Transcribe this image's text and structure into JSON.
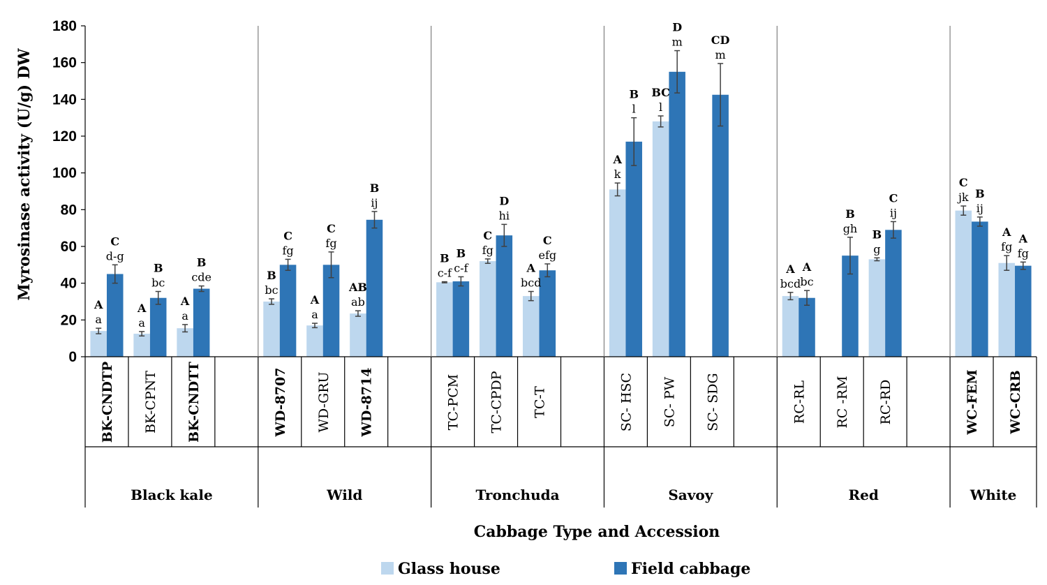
{
  "chart_data": {
    "type": "bar",
    "title": "",
    "xlabel": "Cabbage Type and Accession",
    "ylabel": "Myrosinase activity (U/g) DW",
    "ylim": [
      0,
      180
    ],
    "yticks": [
      0,
      20,
      40,
      60,
      80,
      100,
      120,
      140,
      160,
      180
    ],
    "legend_position": "bottom",
    "colors": {
      "Glass house": "#bdd7ee",
      "Field cabbage": "#2e75b6"
    },
    "series": [
      {
        "name": "Glass house"
      },
      {
        "name": "Field cabbage"
      }
    ],
    "groups": [
      {
        "name": "Black kale",
        "accessions": [
          {
            "name": "BK-CNDTP",
            "bold": true,
            "glass": {
              "value": 14,
              "err": 1.5,
              "lower": "a",
              "upper": "A"
            },
            "field": {
              "value": 45,
              "err": 5,
              "lower": "d-g",
              "upper": "C"
            }
          },
          {
            "name": "BK-CPNT",
            "bold": false,
            "glass": {
              "value": 12.5,
              "err": 1.2,
              "lower": "a",
              "upper": "A"
            },
            "field": {
              "value": 32,
              "err": 3.5,
              "lower": "bc",
              "upper": "B"
            }
          },
          {
            "name": "BK-CNDTT",
            "bold": true,
            "glass": {
              "value": 15.5,
              "err": 2,
              "lower": "a",
              "upper": "A"
            },
            "field": {
              "value": 37,
              "err": 1.5,
              "lower": "cde",
              "upper": "B"
            }
          },
          {
            "name": "",
            "empty": true
          }
        ]
      },
      {
        "name": "Wild",
        "accessions": [
          {
            "name": "WD-8707",
            "bold": true,
            "glass": {
              "value": 30,
              "err": 1.5,
              "lower": "bc",
              "upper": "B"
            },
            "field": {
              "value": 50,
              "err": 3,
              "lower": "fg",
              "upper": "C"
            }
          },
          {
            "name": "WD-GRU",
            "bold": false,
            "glass": {
              "value": 17,
              "err": 1.2,
              "lower": "a",
              "upper": "A"
            },
            "field": {
              "value": 50,
              "err": 7,
              "lower": "fg",
              "upper": "C"
            }
          },
          {
            "name": "WD-8714",
            "bold": true,
            "glass": {
              "value": 23.5,
              "err": 1.5,
              "lower": "ab",
              "upper": "AB"
            },
            "field": {
              "value": 74.5,
              "err": 4.5,
              "lower": "ij",
              "upper": "B"
            }
          },
          {
            "name": "",
            "empty": true
          }
        ]
      },
      {
        "name": "Tronchuda",
        "accessions": [
          {
            "name": "TC-PCM",
            "bold": false,
            "glass": {
              "value": 40.5,
              "err": 0.3,
              "lower": "c-f",
              "upper": "B"
            },
            "field": {
              "value": 41,
              "err": 2.5,
              "lower": "c-f",
              "upper": "B"
            }
          },
          {
            "name": "TC-CPDP",
            "bold": false,
            "glass": {
              "value": 52,
              "err": 1.2,
              "lower": "fg",
              "upper": "C"
            },
            "field": {
              "value": 66,
              "err": 6,
              "lower": "hi",
              "upper": "D"
            }
          },
          {
            "name": "TC-T",
            "bold": false,
            "glass": {
              "value": 33,
              "err": 2.5,
              "lower": "bcd",
              "upper": "A"
            },
            "field": {
              "value": 47,
              "err": 3.5,
              "lower": "efg",
              "upper": "C"
            }
          },
          {
            "name": "",
            "empty": true
          }
        ]
      },
      {
        "name": "Savoy",
        "accessions": [
          {
            "name": "SC- HSC",
            "bold": false,
            "glass": {
              "value": 91,
              "err": 3.5,
              "lower": "k",
              "upper": "A"
            },
            "field": {
              "value": 117,
              "err": 13,
              "lower": "l",
              "upper": "B"
            }
          },
          {
            "name": "SC- PW",
            "bold": false,
            "glass": {
              "value": 128,
              "err": 3,
              "lower": "l",
              "upper": "BC"
            },
            "field": {
              "value": 155,
              "err": 11.5,
              "lower": "m",
              "upper": "D"
            }
          },
          {
            "name": "SC- SDG",
            "bold": false,
            "glass": null,
            "field": {
              "value": 142.5,
              "err": 17,
              "lower": "m",
              "upper": "CD"
            }
          },
          {
            "name": "",
            "empty": true
          }
        ]
      },
      {
        "name": "Red",
        "accessions": [
          {
            "name": "RC-RL",
            "bold": false,
            "glass": {
              "value": 33,
              "err": 2,
              "lower": "bcd",
              "upper": "A"
            },
            "field": {
              "value": 32,
              "err": 4,
              "lower": "bc",
              "upper": "A"
            }
          },
          {
            "name": "RC -RM",
            "bold": false,
            "glass": null,
            "field": {
              "value": 55,
              "err": 10,
              "lower": "gh",
              "upper": "B"
            }
          },
          {
            "name": "RC-RD",
            "bold": false,
            "glass": {
              "value": 53,
              "err": 0.8,
              "lower": "g",
              "upper": "B"
            },
            "field": {
              "value": 69,
              "err": 4.5,
              "lower": "ij",
              "upper": "C"
            }
          },
          {
            "name": "",
            "empty": true
          }
        ]
      },
      {
        "name": "White",
        "accessions": [
          {
            "name": "WC-FEM",
            "bold": true,
            "glass": {
              "value": 79.5,
              "err": 2.5,
              "lower": "jk",
              "upper": "C"
            },
            "field": {
              "value": 73.5,
              "err": 2.5,
              "lower": "ij",
              "upper": "B"
            }
          },
          {
            "name": "WC-CRB",
            "bold": true,
            "glass": {
              "value": 51,
              "err": 4,
              "lower": "fg",
              "upper": "A"
            },
            "field": {
              "value": 49.5,
              "err": 2,
              "lower": "fg",
              "upper": "A"
            }
          }
        ]
      }
    ]
  }
}
